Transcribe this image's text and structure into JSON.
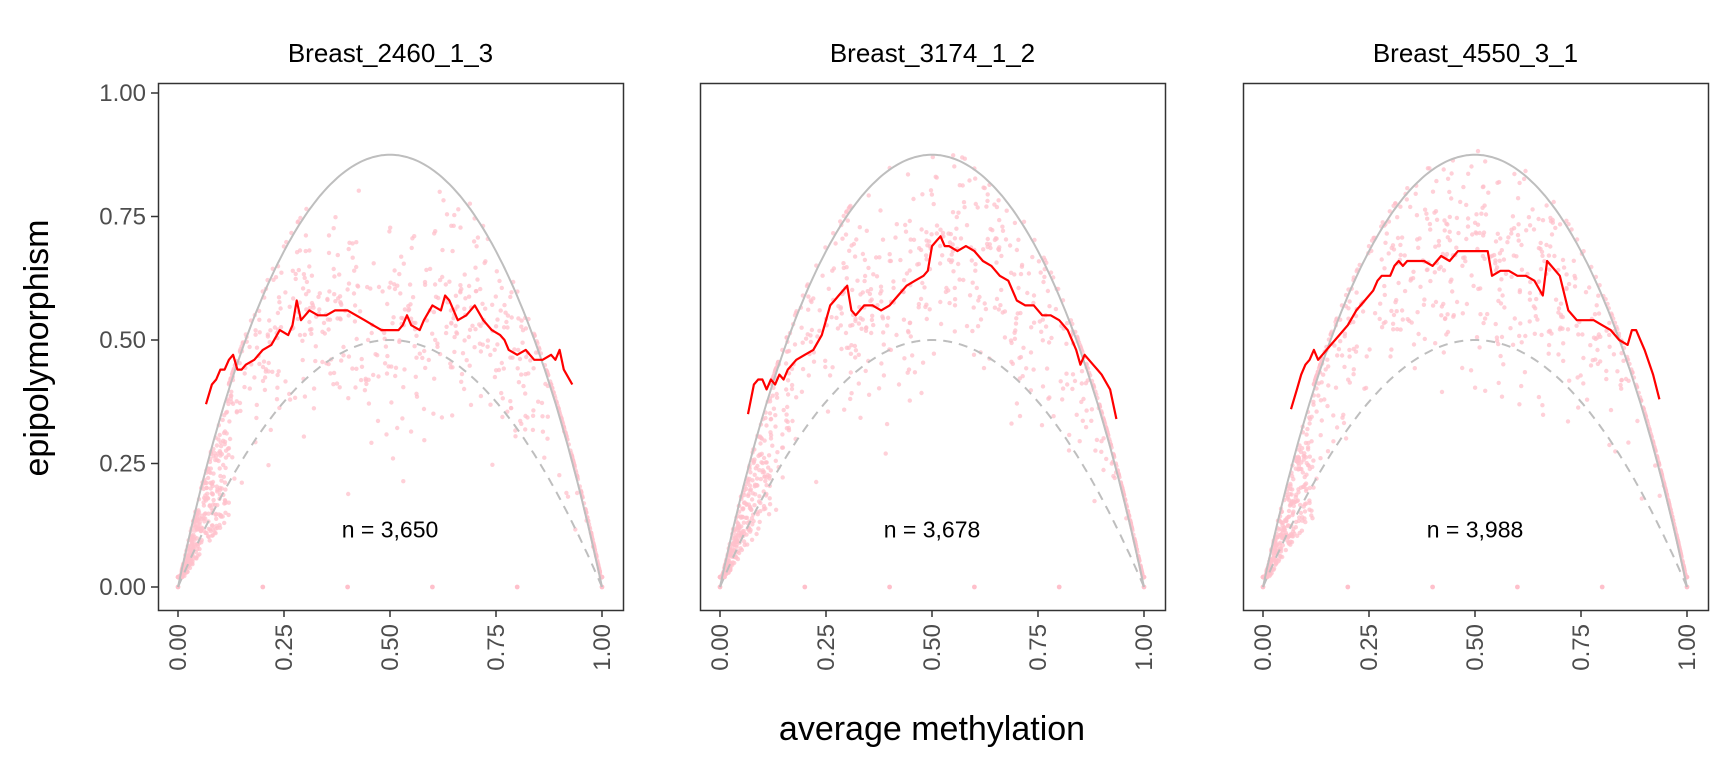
{
  "chart_data": {
    "type": "scatter",
    "xlabel": "average methylation",
    "ylabel": "epipolymorphism",
    "xlim": [
      0,
      1
    ],
    "ylim": [
      0,
      1
    ],
    "x_ticks": [
      "0.00",
      "0.25",
      "0.50",
      "0.75",
      "1.00"
    ],
    "y_ticks": [
      "0.00",
      "0.25",
      "0.50",
      "0.75",
      "1.00"
    ],
    "grid": false,
    "colors": {
      "points": "#ffc0cb",
      "smooth_line": "#ff0000",
      "upper_bound": "#bebebe",
      "lower_bound": "#bebebe"
    },
    "reference_curves": {
      "upper_bound": "1 - m^4 - (1-m)^4 (solid grey)",
      "lower_bound": "2 m (1-m) (dashed grey)"
    },
    "panels": [
      {
        "title": "Breast_2460_1_3",
        "annotation": "n = 3,650",
        "smooth_x": [
          0.066,
          0.08,
          0.09,
          0.1,
          0.11,
          0.12,
          0.13,
          0.14,
          0.15,
          0.16,
          0.18,
          0.2,
          0.22,
          0.24,
          0.26,
          0.27,
          0.28,
          0.29,
          0.3,
          0.31,
          0.33,
          0.35,
          0.37,
          0.38,
          0.4,
          0.42,
          0.44,
          0.46,
          0.48,
          0.5,
          0.52,
          0.53,
          0.54,
          0.55,
          0.57,
          0.58,
          0.6,
          0.62,
          0.63,
          0.64,
          0.66,
          0.68,
          0.7,
          0.72,
          0.74,
          0.76,
          0.77,
          0.78,
          0.8,
          0.82,
          0.84,
          0.86,
          0.88,
          0.89,
          0.9,
          0.91,
          0.93
        ],
        "smooth_y": [
          0.37,
          0.41,
          0.42,
          0.44,
          0.44,
          0.46,
          0.47,
          0.44,
          0.44,
          0.45,
          0.46,
          0.48,
          0.49,
          0.52,
          0.51,
          0.53,
          0.58,
          0.54,
          0.55,
          0.56,
          0.55,
          0.55,
          0.56,
          0.56,
          0.56,
          0.55,
          0.54,
          0.53,
          0.52,
          0.52,
          0.52,
          0.53,
          0.55,
          0.53,
          0.52,
          0.54,
          0.57,
          0.56,
          0.59,
          0.58,
          0.54,
          0.55,
          0.57,
          0.54,
          0.52,
          0.51,
          0.5,
          0.48,
          0.47,
          0.48,
          0.46,
          0.46,
          0.47,
          0.46,
          0.48,
          0.44,
          0.41
        ]
      },
      {
        "title": "Breast_3174_1_2",
        "annotation": "n = 3,678",
        "smooth_x": [
          0.066,
          0.08,
          0.09,
          0.1,
          0.11,
          0.12,
          0.13,
          0.14,
          0.15,
          0.16,
          0.18,
          0.2,
          0.22,
          0.24,
          0.26,
          0.27,
          0.28,
          0.3,
          0.31,
          0.32,
          0.33,
          0.34,
          0.36,
          0.38,
          0.4,
          0.42,
          0.44,
          0.46,
          0.48,
          0.49,
          0.5,
          0.51,
          0.52,
          0.53,
          0.54,
          0.56,
          0.58,
          0.6,
          0.62,
          0.64,
          0.66,
          0.68,
          0.7,
          0.72,
          0.74,
          0.76,
          0.78,
          0.8,
          0.82,
          0.84,
          0.85,
          0.86,
          0.88,
          0.89,
          0.9,
          0.92,
          0.935
        ],
        "smooth_y": [
          0.35,
          0.41,
          0.42,
          0.42,
          0.4,
          0.42,
          0.41,
          0.43,
          0.42,
          0.44,
          0.46,
          0.47,
          0.48,
          0.51,
          0.57,
          0.58,
          0.59,
          0.61,
          0.56,
          0.55,
          0.56,
          0.57,
          0.57,
          0.56,
          0.57,
          0.59,
          0.61,
          0.62,
          0.63,
          0.64,
          0.69,
          0.7,
          0.71,
          0.69,
          0.69,
          0.68,
          0.69,
          0.68,
          0.66,
          0.65,
          0.63,
          0.62,
          0.58,
          0.57,
          0.57,
          0.55,
          0.55,
          0.54,
          0.52,
          0.48,
          0.45,
          0.47,
          0.45,
          0.44,
          0.43,
          0.4,
          0.34
        ]
      },
      {
        "title": "Breast_4550_3_1",
        "annotation": "n = 3,988",
        "smooth_x": [
          0.066,
          0.08,
          0.09,
          0.1,
          0.11,
          0.12,
          0.13,
          0.14,
          0.15,
          0.16,
          0.18,
          0.2,
          0.22,
          0.24,
          0.26,
          0.27,
          0.28,
          0.3,
          0.31,
          0.32,
          0.33,
          0.34,
          0.36,
          0.38,
          0.4,
          0.42,
          0.44,
          0.46,
          0.48,
          0.49,
          0.5,
          0.52,
          0.53,
          0.54,
          0.56,
          0.58,
          0.6,
          0.62,
          0.64,
          0.66,
          0.67,
          0.68,
          0.7,
          0.72,
          0.74,
          0.76,
          0.78,
          0.8,
          0.82,
          0.84,
          0.86,
          0.87,
          0.88,
          0.9,
          0.92,
          0.935
        ],
        "smooth_y": [
          0.36,
          0.4,
          0.43,
          0.45,
          0.46,
          0.48,
          0.46,
          0.47,
          0.48,
          0.49,
          0.51,
          0.53,
          0.56,
          0.58,
          0.6,
          0.62,
          0.63,
          0.63,
          0.65,
          0.66,
          0.65,
          0.66,
          0.66,
          0.66,
          0.65,
          0.67,
          0.66,
          0.68,
          0.68,
          0.68,
          0.68,
          0.68,
          0.68,
          0.63,
          0.64,
          0.64,
          0.63,
          0.63,
          0.62,
          0.59,
          0.66,
          0.65,
          0.63,
          0.56,
          0.54,
          0.54,
          0.54,
          0.53,
          0.52,
          0.5,
          0.49,
          0.52,
          0.52,
          0.48,
          0.43,
          0.38
        ]
      }
    ]
  }
}
